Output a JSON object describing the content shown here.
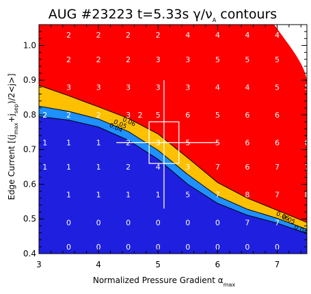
{
  "chart_data": {
    "type": "heatmap",
    "title": "AUG #23223 t=5.33s γ/ν",
    "title_sub": "A",
    "title_tail": " contours",
    "xlabel": "Normalized Pressure Gradient α",
    "xlabel_sub": "max",
    "ylabel_parts": [
      "Edge Current  [(j",
      "max",
      "+j",
      "sep",
      ")/2<j>]"
    ],
    "xlim": [
      3,
      7.5
    ],
    "ylim": [
      0.4,
      1.06
    ],
    "x_ticks": [
      3,
      4,
      5,
      6,
      7
    ],
    "x_tick_labels": [
      "3",
      "4",
      "5",
      "6",
      "7"
    ],
    "y_ticks": [
      0.4,
      0.5,
      0.6,
      0.7,
      0.8,
      0.9,
      1.0
    ],
    "y_tick_labels": [
      "0.4",
      "0.5",
      "0.6",
      "0.7",
      "0.8",
      "0.9",
      "1.0"
    ],
    "colors": {
      "stable": "#1f1fe0",
      "band_low": "#1e90ff",
      "band_mid": "#ffc000",
      "unstable": "#ff0000",
      "marker": "#ffffff"
    },
    "contour_levels": [
      {
        "label": "0.04",
        "x": [
          3.0,
          3.5,
          4.0,
          4.5,
          5.0,
          5.5,
          6.0,
          6.5,
          7.0,
          7.5
        ],
        "y": [
          0.795,
          0.785,
          0.765,
          0.727,
          0.672,
          0.6,
          0.545,
          0.511,
          0.488,
          0.458
        ]
      },
      {
        "label": "0.05",
        "x": [
          3.0,
          3.5,
          4.0,
          4.5,
          5.0,
          5.5,
          6.0,
          6.5,
          7.0,
          7.5
        ],
        "y": [
          0.825,
          0.81,
          0.788,
          0.752,
          0.698,
          0.628,
          0.566,
          0.528,
          0.502,
          0.47
        ]
      },
      {
        "label": "0.06",
        "x": [
          3.0,
          3.5,
          4.0,
          4.5,
          5.0,
          5.5,
          6.0,
          6.5,
          7.0,
          7.5
        ],
        "y": [
          0.885,
          0.855,
          0.823,
          0.79,
          0.745,
          0.676,
          0.605,
          0.56,
          0.525,
          0.49
        ]
      }
    ],
    "contour_label_positions": [
      {
        "text": "0.04",
        "x": 4.28,
        "y": 0.758
      },
      {
        "text": "0.05",
        "x": 4.35,
        "y": 0.768
      },
      {
        "text": "0.06",
        "x": 4.5,
        "y": 0.775
      },
      {
        "text": "0.05",
        "x": 7.18,
        "y": 0.493
      },
      {
        "text": "0.04",
        "x": 7.38,
        "y": 0.464
      },
      {
        "text": "0.06",
        "x": 7.08,
        "y": 0.503
      }
    ],
    "grid_values": [
      {
        "x": 3.5,
        "y": 1.03,
        "v": "2"
      },
      {
        "x": 4.0,
        "y": 1.03,
        "v": "2"
      },
      {
        "x": 4.5,
        "y": 1.03,
        "v": "2"
      },
      {
        "x": 5.0,
        "y": 1.03,
        "v": "2"
      },
      {
        "x": 5.5,
        "y": 1.03,
        "v": "4"
      },
      {
        "x": 6.0,
        "y": 1.03,
        "v": "4"
      },
      {
        "x": 6.5,
        "y": 1.03,
        "v": "4"
      },
      {
        "x": 7.0,
        "y": 1.03,
        "v": "4"
      },
      {
        "x": 3.5,
        "y": 0.96,
        "v": "2"
      },
      {
        "x": 4.0,
        "y": 0.96,
        "v": "2"
      },
      {
        "x": 4.5,
        "y": 0.96,
        "v": "2"
      },
      {
        "x": 5.0,
        "y": 0.96,
        "v": "3"
      },
      {
        "x": 5.5,
        "y": 0.96,
        "v": "3"
      },
      {
        "x": 6.0,
        "y": 0.96,
        "v": "5"
      },
      {
        "x": 6.5,
        "y": 0.96,
        "v": "5"
      },
      {
        "x": 7.0,
        "y": 0.96,
        "v": "5"
      },
      {
        "x": 7.5,
        "y": 0.96,
        "v": "5"
      },
      {
        "x": 3.5,
        "y": 0.88,
        "v": "3"
      },
      {
        "x": 4.0,
        "y": 0.88,
        "v": "3"
      },
      {
        "x": 4.5,
        "y": 0.88,
        "v": "3"
      },
      {
        "x": 5.0,
        "y": 0.88,
        "v": "3"
      },
      {
        "x": 5.5,
        "y": 0.88,
        "v": "3"
      },
      {
        "x": 6.0,
        "y": 0.88,
        "v": "4"
      },
      {
        "x": 6.5,
        "y": 0.88,
        "v": "4"
      },
      {
        "x": 7.0,
        "y": 0.88,
        "v": "5"
      },
      {
        "x": 7.5,
        "y": 0.88,
        "v": "5"
      },
      {
        "x": 3.5,
        "y": 0.8,
        "v": "2"
      },
      {
        "x": 4.0,
        "y": 0.8,
        "v": "2"
      },
      {
        "x": 4.5,
        "y": 0.8,
        "v": "3"
      },
      {
        "x": 5.0,
        "y": 0.8,
        "v": "5"
      },
      {
        "x": 5.5,
        "y": 0.8,
        "v": "6"
      },
      {
        "x": 6.0,
        "y": 0.8,
        "v": "5"
      },
      {
        "x": 6.5,
        "y": 0.8,
        "v": "6"
      },
      {
        "x": 7.0,
        "y": 0.8,
        "v": "6"
      },
      {
        "x": 3.5,
        "y": 0.72,
        "v": "1"
      },
      {
        "x": 4.0,
        "y": 0.72,
        "v": "1"
      },
      {
        "x": 4.5,
        "y": 0.72,
        "v": "2"
      },
      {
        "x": 5.0,
        "y": 0.72,
        "v": "3"
      },
      {
        "x": 5.5,
        "y": 0.72,
        "v": "5"
      },
      {
        "x": 6.0,
        "y": 0.72,
        "v": "5"
      },
      {
        "x": 6.5,
        "y": 0.72,
        "v": "6"
      },
      {
        "x": 7.0,
        "y": 0.72,
        "v": "6"
      },
      {
        "x": 7.5,
        "y": 0.72,
        "v": "6"
      },
      {
        "x": 3.5,
        "y": 0.65,
        "v": "1"
      },
      {
        "x": 4.0,
        "y": 0.65,
        "v": "1"
      },
      {
        "x": 4.5,
        "y": 0.65,
        "v": "2"
      },
      {
        "x": 5.0,
        "y": 0.65,
        "v": "4"
      },
      {
        "x": 5.5,
        "y": 0.65,
        "v": "3"
      },
      {
        "x": 6.0,
        "y": 0.65,
        "v": "7"
      },
      {
        "x": 6.5,
        "y": 0.65,
        "v": "6"
      },
      {
        "x": 7.0,
        "y": 0.65,
        "v": "7"
      },
      {
        "x": 7.5,
        "y": 0.65,
        "v": "7"
      },
      {
        "x": 3.5,
        "y": 0.57,
        "v": "1"
      },
      {
        "x": 4.0,
        "y": 0.57,
        "v": "1"
      },
      {
        "x": 4.5,
        "y": 0.57,
        "v": "1"
      },
      {
        "x": 5.0,
        "y": 0.57,
        "v": "1"
      },
      {
        "x": 5.5,
        "y": 0.57,
        "v": "5"
      },
      {
        "x": 6.0,
        "y": 0.57,
        "v": "7"
      },
      {
        "x": 6.5,
        "y": 0.57,
        "v": "8"
      },
      {
        "x": 7.0,
        "y": 0.57,
        "v": "7"
      },
      {
        "x": 7.5,
        "y": 0.57,
        "v": "8"
      },
      {
        "x": 3.5,
        "y": 0.49,
        "v": "0"
      },
      {
        "x": 4.0,
        "y": 0.49,
        "v": "0"
      },
      {
        "x": 4.5,
        "y": 0.49,
        "v": "0"
      },
      {
        "x": 5.0,
        "y": 0.49,
        "v": "0"
      },
      {
        "x": 5.5,
        "y": 0.49,
        "v": "0"
      },
      {
        "x": 6.0,
        "y": 0.49,
        "v": "0"
      },
      {
        "x": 6.5,
        "y": 0.49,
        "v": "7"
      },
      {
        "x": 7.0,
        "y": 0.49,
        "v": "7"
      },
      {
        "x": 3.5,
        "y": 0.42,
        "v": "0"
      },
      {
        "x": 4.0,
        "y": 0.42,
        "v": "0"
      },
      {
        "x": 4.5,
        "y": 0.42,
        "v": "0"
      },
      {
        "x": 5.0,
        "y": 0.42,
        "v": "0"
      },
      {
        "x": 5.5,
        "y": 0.42,
        "v": "0"
      },
      {
        "x": 6.0,
        "y": 0.42,
        "v": "0"
      },
      {
        "x": 6.5,
        "y": 0.42,
        "v": "0"
      },
      {
        "x": 7.0,
        "y": 0.42,
        "v": "0"
      }
    ],
    "operating_point": {
      "x": 5.1,
      "y": 0.72,
      "x_err": [
        4.85,
        5.35
      ],
      "y_err": [
        0.66,
        0.78
      ],
      "cross_x": [
        4.3,
        6.0
      ],
      "cross_y": [
        0.53,
        0.9
      ]
    }
  }
}
